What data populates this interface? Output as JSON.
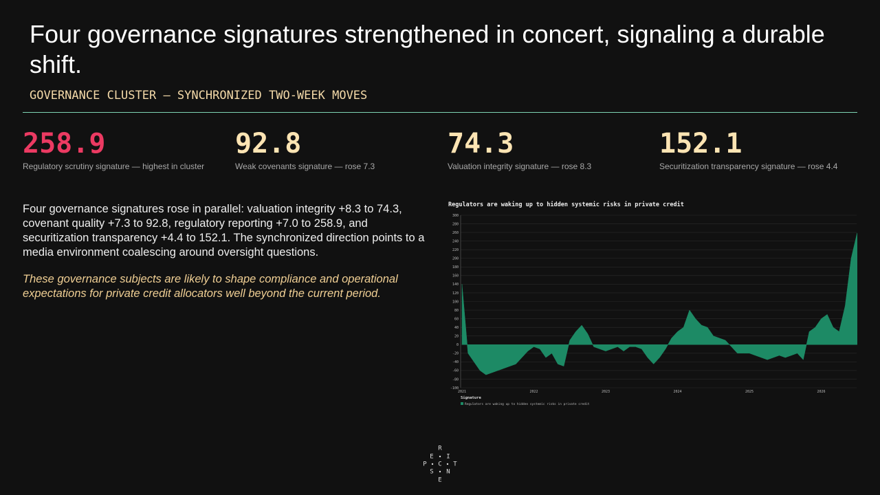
{
  "header": {
    "title": "Four governance signatures strengthened in concert, signaling a durable shift.",
    "subtitle": "GOVERNANCE CLUSTER — SYNCHRONIZED TWO-WEEK MOVES"
  },
  "kpis": [
    {
      "value": "258.9",
      "label": "Regulatory scrutiny signature — highest in cluster"
    },
    {
      "value": "92.8",
      "label": "Weak covenants signature — rose 7.3"
    },
    {
      "value": "74.3",
      "label": "Valuation integrity signature — rose 8.3"
    },
    {
      "value": "152.1",
      "label": "Securitization transparency signature — rose 4.4"
    }
  ],
  "body": "Four governance signatures rose in parallel: valuation integrity +8.3 to 74.3, covenant quality +7.3 to 92.8, regulatory reporting +7.0 to 258.9, and securitization transparency +4.4 to 152.1. The synchronized direction points to a media environment coalescing around oversight questions.",
  "note": "These governance subjects are likely to shape compliance and operational expectations for private credit allocators well beyond the current period.",
  "logo": [
    "R",
    "E",
    "I",
    "P",
    "C",
    "T",
    "S",
    "N",
    "E"
  ],
  "chart_data": {
    "type": "area",
    "title": "Regulators are waking up to hidden systemic risks in private credit",
    "legend_title": "Signature",
    "categories": [
      "2021",
      null,
      null,
      null,
      null,
      null,
      null,
      null,
      null,
      null,
      null,
      null,
      "2022",
      null,
      null,
      null,
      null,
      null,
      null,
      null,
      null,
      null,
      null,
      null,
      "2023",
      null,
      null,
      null,
      null,
      null,
      null,
      null,
      null,
      null,
      null,
      null,
      "2024",
      null,
      null,
      null,
      null,
      null,
      null,
      null,
      null,
      null,
      null,
      null,
      "2025",
      null,
      null,
      null,
      null,
      null,
      null,
      null,
      null,
      null,
      null,
      null,
      "2026",
      null,
      null,
      null,
      null,
      null,
      null
    ],
    "series": [
      {
        "name": "Regulators are waking up to hidden systemic risks in private credit",
        "color": "#1d8a65",
        "values": [
          140,
          -20,
          -40,
          -60,
          -70,
          -65,
          -60,
          -55,
          -50,
          -45,
          -30,
          -15,
          -5,
          -10,
          -30,
          -20,
          -45,
          -50,
          10,
          30,
          45,
          25,
          -5,
          -10,
          -15,
          -10,
          -5,
          -15,
          -5,
          -5,
          -10,
          -30,
          -45,
          -30,
          -10,
          15,
          30,
          40,
          80,
          60,
          45,
          40,
          20,
          15,
          10,
          -5,
          -20,
          -20,
          -20,
          -25,
          -30,
          -35,
          -30,
          -25,
          -30,
          -25,
          -20,
          -35,
          30,
          40,
          60,
          70,
          40,
          30,
          90,
          200,
          258.9
        ]
      }
    ],
    "ylim": [
      -100,
      300
    ],
    "yticks": [
      -100,
      -80,
      -60,
      -40,
      -20,
      0,
      20,
      40,
      60,
      80,
      100,
      120,
      140,
      160,
      180,
      200,
      220,
      240,
      260,
      280,
      300
    ],
    "grid": true
  }
}
